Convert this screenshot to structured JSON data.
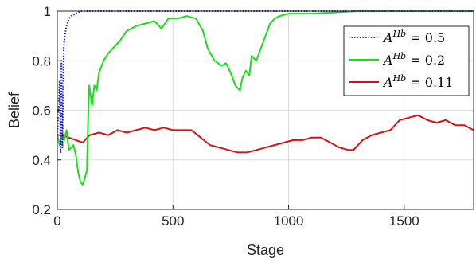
{
  "chart_data": {
    "type": "line",
    "xlabel": "Stage",
    "ylabel": "Belief",
    "xlim": [
      0,
      1800
    ],
    "ylim": [
      0.2,
      1.0
    ],
    "xticks": [
      0,
      500,
      1000,
      1500
    ],
    "yticks": [
      0.2,
      0.4,
      0.6,
      0.8,
      1.0
    ],
    "xtick_labels": [
      "0",
      "500",
      "1000",
      "1500"
    ],
    "ytick_labels": [
      "0.2",
      "0.4",
      "0.6",
      "0.8",
      "1"
    ],
    "grid": true,
    "legend_position": "top-right",
    "series": [
      {
        "name": "A^{Hb} = 0.5",
        "legend_base": "A",
        "legend_sup": "Hb",
        "legend_value": " = 0.5",
        "color": "#1f1fd6",
        "style": "dotted",
        "points": [
          [
            0,
            0.5
          ],
          [
            5,
            0.6
          ],
          [
            10,
            0.72
          ],
          [
            14,
            0.43
          ],
          [
            18,
            0.8
          ],
          [
            22,
            0.45
          ],
          [
            28,
            0.86
          ],
          [
            34,
            0.91
          ],
          [
            40,
            0.94
          ],
          [
            50,
            0.97
          ],
          [
            60,
            0.98
          ],
          [
            80,
            0.99
          ],
          [
            100,
            1.0
          ],
          [
            1800,
            1.0
          ]
        ]
      },
      {
        "name": "A^{Hb} = 0.2",
        "legend_base": "A",
        "legend_sup": "Hb",
        "legend_value": " = 0.2",
        "color": "#18e018",
        "style": "solid",
        "points": [
          [
            0,
            0.5
          ],
          [
            10,
            0.46
          ],
          [
            20,
            0.5
          ],
          [
            30,
            0.48
          ],
          [
            40,
            0.52
          ],
          [
            50,
            0.44
          ],
          [
            60,
            0.45
          ],
          [
            70,
            0.46
          ],
          [
            80,
            0.42
          ],
          [
            90,
            0.35
          ],
          [
            100,
            0.31
          ],
          [
            110,
            0.3
          ],
          [
            120,
            0.33
          ],
          [
            128,
            0.36
          ],
          [
            133,
            0.55
          ],
          [
            138,
            0.7
          ],
          [
            150,
            0.62
          ],
          [
            160,
            0.7
          ],
          [
            170,
            0.68
          ],
          [
            180,
            0.75
          ],
          [
            200,
            0.8
          ],
          [
            220,
            0.83
          ],
          [
            250,
            0.86
          ],
          [
            270,
            0.88
          ],
          [
            300,
            0.92
          ],
          [
            340,
            0.94
          ],
          [
            380,
            0.95
          ],
          [
            420,
            0.96
          ],
          [
            450,
            0.93
          ],
          [
            480,
            0.97
          ],
          [
            520,
            0.97
          ],
          [
            560,
            0.98
          ],
          [
            600,
            0.97
          ],
          [
            630,
            0.92
          ],
          [
            650,
            0.85
          ],
          [
            680,
            0.8
          ],
          [
            710,
            0.78
          ],
          [
            730,
            0.79
          ],
          [
            750,
            0.75
          ],
          [
            770,
            0.7
          ],
          [
            790,
            0.68
          ],
          [
            800,
            0.73
          ],
          [
            815,
            0.76
          ],
          [
            830,
            0.74
          ],
          [
            840,
            0.82
          ],
          [
            860,
            0.8
          ],
          [
            880,
            0.85
          ],
          [
            900,
            0.9
          ],
          [
            920,
            0.95
          ],
          [
            940,
            0.97
          ],
          [
            960,
            0.98
          ],
          [
            1000,
            0.99
          ],
          [
            1100,
            0.99
          ],
          [
            1200,
            0.995
          ],
          [
            1300,
            1.0
          ],
          [
            1800,
            1.0
          ]
        ]
      },
      {
        "name": "A^{Hb} = 0.11",
        "legend_base": "A",
        "legend_sup": "Hb",
        "legend_value": " = 0.11",
        "color": "#dd1111",
        "style": "solid",
        "points": [
          [
            0,
            0.5
          ],
          [
            20,
            0.5
          ],
          [
            50,
            0.49
          ],
          [
            80,
            0.48
          ],
          [
            110,
            0.47
          ],
          [
            140,
            0.5
          ],
          [
            180,
            0.51
          ],
          [
            220,
            0.5
          ],
          [
            260,
            0.52
          ],
          [
            300,
            0.51
          ],
          [
            340,
            0.52
          ],
          [
            380,
            0.53
          ],
          [
            420,
            0.52
          ],
          [
            460,
            0.53
          ],
          [
            500,
            0.52
          ],
          [
            540,
            0.52
          ],
          [
            580,
            0.52
          ],
          [
            620,
            0.49
          ],
          [
            660,
            0.46
          ],
          [
            700,
            0.45
          ],
          [
            740,
            0.44
          ],
          [
            780,
            0.43
          ],
          [
            820,
            0.43
          ],
          [
            860,
            0.44
          ],
          [
            900,
            0.45
          ],
          [
            940,
            0.46
          ],
          [
            980,
            0.47
          ],
          [
            1020,
            0.48
          ],
          [
            1060,
            0.48
          ],
          [
            1100,
            0.49
          ],
          [
            1140,
            0.49
          ],
          [
            1180,
            0.47
          ],
          [
            1220,
            0.45
          ],
          [
            1260,
            0.44
          ],
          [
            1280,
            0.44
          ],
          [
            1320,
            0.48
          ],
          [
            1360,
            0.5
          ],
          [
            1400,
            0.51
          ],
          [
            1440,
            0.52
          ],
          [
            1480,
            0.56
          ],
          [
            1520,
            0.57
          ],
          [
            1560,
            0.58
          ],
          [
            1600,
            0.56
          ],
          [
            1640,
            0.55
          ],
          [
            1680,
            0.56
          ],
          [
            1720,
            0.54
          ],
          [
            1760,
            0.54
          ],
          [
            1800,
            0.52
          ]
        ]
      }
    ]
  }
}
